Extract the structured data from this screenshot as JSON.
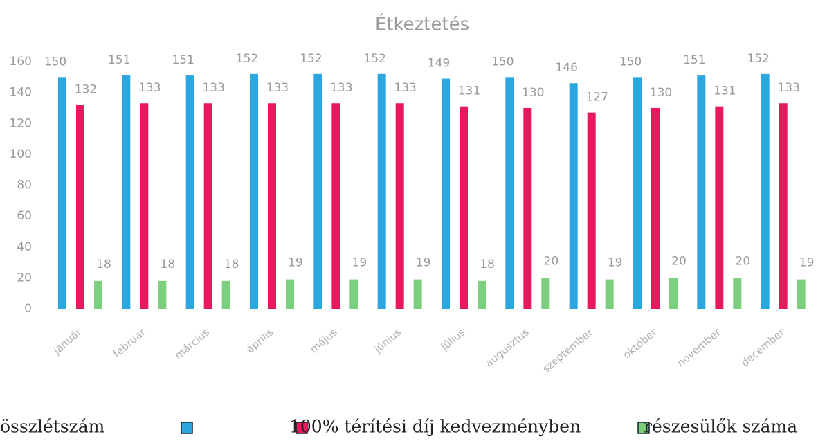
{
  "chart_data": {
    "type": "bar",
    "title": "Étkeztetés",
    "categories": [
      "január",
      "február",
      "március",
      "április",
      "május",
      "június",
      "július",
      "augusztus",
      "szeptember",
      "október",
      "november",
      "december"
    ],
    "series": [
      {
        "name": "összlétszám",
        "color": "#2aa7df",
        "values": [
          150,
          151,
          151,
          152,
          152,
          152,
          149,
          150,
          146,
          150,
          151,
          152
        ]
      },
      {
        "name": "100% térítési díj kedvezményben",
        "color": "#e8185a",
        "values": [
          132,
          133,
          133,
          133,
          133,
          133,
          131,
          130,
          127,
          130,
          131,
          133
        ]
      },
      {
        "name": "részesülők száma",
        "color": "#7ccf7c",
        "values": [
          18,
          18,
          18,
          19,
          19,
          19,
          18,
          20,
          19,
          20,
          20,
          19
        ]
      }
    ],
    "ylim": [
      0,
      160
    ],
    "yticks": [
      0,
      20,
      40,
      60,
      80,
      100,
      120,
      140,
      160
    ],
    "grid": false
  }
}
